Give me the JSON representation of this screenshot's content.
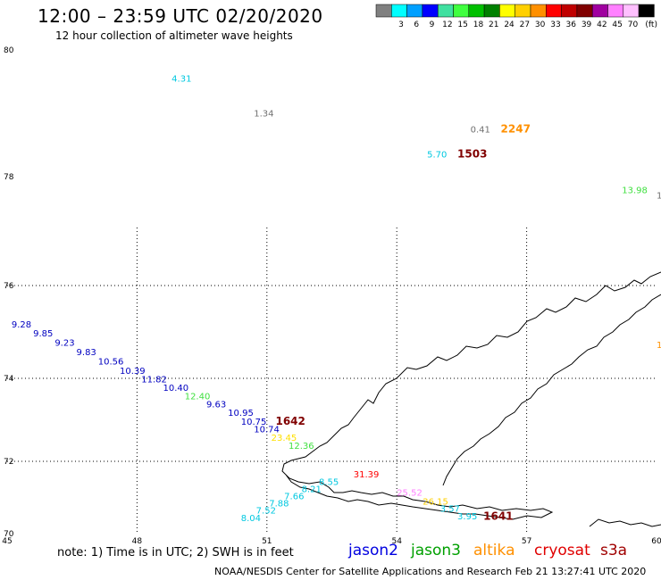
{
  "header": {
    "title": "12:00 – 23:59 UTC 02/20/2020",
    "subtitle": "12 hour collection of altimeter wave heights"
  },
  "legend": {
    "unit": "(ft)",
    "bins": [
      {
        "color": "#808080",
        "label": ""
      },
      {
        "color": "#00ffff",
        "label": "3"
      },
      {
        "color": "#00a0ff",
        "label": "6"
      },
      {
        "color": "#0000ff",
        "label": "9"
      },
      {
        "color": "#40e0a0",
        "label": "12"
      },
      {
        "color": "#40ff40",
        "label": "15"
      },
      {
        "color": "#00c000",
        "label": "18"
      },
      {
        "color": "#008000",
        "label": "21"
      },
      {
        "color": "#ffff00",
        "label": "24"
      },
      {
        "color": "#ffd000",
        "label": "27"
      },
      {
        "color": "#ff9000",
        "label": "30"
      },
      {
        "color": "#ff0000",
        "label": "33"
      },
      {
        "color": "#c00000",
        "label": "36"
      },
      {
        "color": "#800000",
        "label": "39"
      },
      {
        "color": "#a000a0",
        "label": "42"
      },
      {
        "color": "#ff80ff",
        "label": "45"
      },
      {
        "color": "#ffc0ff",
        "label": "70"
      },
      {
        "color": "#000000",
        "label": ""
      }
    ]
  },
  "axes": {
    "lat_labels": [
      "80",
      "78",
      "76",
      "74",
      "72",
      "70"
    ],
    "lon_labels": [
      "45",
      "48",
      "51",
      "54",
      "57",
      "60"
    ]
  },
  "observations": [
    {
      "text": "4.31",
      "color": "#00c8e0",
      "lon": 48.8,
      "lat": 79.5
    },
    {
      "text": "1.34",
      "color": "#707070",
      "lon": 50.7,
      "lat": 78.95
    },
    {
      "text": "0.41",
      "color": "#707070",
      "lon": 55.7,
      "lat": 78.7
    },
    {
      "text": "2247",
      "color": "#ff9000",
      "lon": 56.4,
      "lat": 78.7
    },
    {
      "text": "5.70",
      "color": "#00c8e0",
      "lon": 54.7,
      "lat": 78.3
    },
    {
      "text": "1503",
      "color": "#800000",
      "lon": 55.4,
      "lat": 78.3
    },
    {
      "text": "13.98",
      "color": "#40e040",
      "lon": 59.2,
      "lat": 77.7
    },
    {
      "text": "1.",
      "color": "#707070",
      "lon": 60.0,
      "lat": 77.6
    },
    {
      "text": "9.28",
      "color": "#0000c0",
      "lon": 45.1,
      "lat": 75.1
    },
    {
      "text": "9.85",
      "color": "#0000c0",
      "lon": 45.6,
      "lat": 74.9
    },
    {
      "text": "9.23",
      "color": "#0000c0",
      "lon": 46.1,
      "lat": 74.7
    },
    {
      "text": "9.83",
      "color": "#0000c0",
      "lon": 46.6,
      "lat": 74.5
    },
    {
      "text": "10.56",
      "color": "#0000c0",
      "lon": 47.1,
      "lat": 74.3
    },
    {
      "text": "10.39",
      "color": "#0000c0",
      "lon": 47.6,
      "lat": 74.1
    },
    {
      "text": "11.82",
      "color": "#0000c0",
      "lon": 48.1,
      "lat": 73.9
    },
    {
      "text": "10.40",
      "color": "#0000c0",
      "lon": 48.6,
      "lat": 73.7
    },
    {
      "text": "12.40",
      "color": "#40e040",
      "lon": 49.1,
      "lat": 73.5
    },
    {
      "text": "9.63",
      "color": "#0000c0",
      "lon": 49.6,
      "lat": 73.3
    },
    {
      "text": "10.95",
      "color": "#0000c0",
      "lon": 50.1,
      "lat": 73.1
    },
    {
      "text": "10.75",
      "color": "#0000c0",
      "lon": 50.4,
      "lat": 72.88
    },
    {
      "text": "1642",
      "color": "#800000",
      "lon": 51.2,
      "lat": 72.88
    },
    {
      "text": "10.74",
      "color": "#0000c0",
      "lon": 50.7,
      "lat": 72.7
    },
    {
      "text": "23.45",
      "color": "#ffe000",
      "lon": 51.1,
      "lat": 72.5
    },
    {
      "text": "12.36",
      "color": "#40e040",
      "lon": 51.5,
      "lat": 72.3
    },
    {
      "text": "31.39",
      "color": "#ff0000",
      "lon": 53.0,
      "lat": 71.55
    },
    {
      "text": "8.55",
      "color": "#00c8e0",
      "lon": 52.2,
      "lat": 71.35
    },
    {
      "text": "8.21",
      "color": "#00c8e0",
      "lon": 51.8,
      "lat": 71.15
    },
    {
      "text": "7.66",
      "color": "#00c8e0",
      "lon": 51.4,
      "lat": 70.95
    },
    {
      "text": "7.88",
      "color": "#00c8e0",
      "lon": 51.05,
      "lat": 70.75
    },
    {
      "text": "7.52",
      "color": "#00c8e0",
      "lon": 50.75,
      "lat": 70.55
    },
    {
      "text": "8.04",
      "color": "#00c8e0",
      "lon": 50.4,
      "lat": 70.35
    },
    {
      "text": "25.52",
      "color": "#ff80ff",
      "lon": 54.0,
      "lat": 71.05
    },
    {
      "text": "26.15",
      "color": "#ffd000",
      "lon": 54.6,
      "lat": 70.8
    },
    {
      "text": "3.57",
      "color": "#00c8e0",
      "lon": 55.0,
      "lat": 70.6
    },
    {
      "text": "3.95",
      "color": "#00c8e0",
      "lon": 55.4,
      "lat": 70.4
    },
    {
      "text": "1641",
      "color": "#800000",
      "lon": 56.0,
      "lat": 70.38
    },
    {
      "text": "1",
      "color": "#ff9000",
      "lon": 60.0,
      "lat": 74.65
    }
  ],
  "footer": {
    "note": "note: 1) Time is in UTC; 2) SWH is in feet",
    "satellites": [
      {
        "name": "jason2",
        "color": "#0000e0"
      },
      {
        "name": "jason3",
        "color": "#00a000"
      },
      {
        "name": "altika",
        "color": "#ff9000"
      },
      {
        "name": "cryosat",
        "color": "#e00000"
      },
      {
        "name": "s3a",
        "color": "#a00000"
      }
    ],
    "credit": "NOAA/NESDIS Center for Satellite Applications and Research    Feb 21 13:27:41 UTC 2020"
  }
}
